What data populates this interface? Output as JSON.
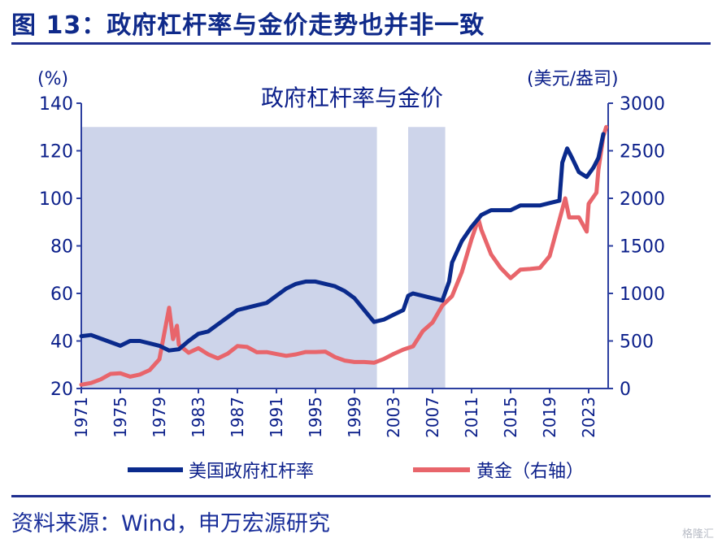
{
  "figure_title": "图 13：政府杠杆率与金价走势也并非一致",
  "source": "资料来源：Wind，申万宏源研究",
  "watermark": "格隆汇",
  "colors": {
    "title": "#0f2a8a",
    "leverage_line": "#0a2a8c",
    "gold_line": "#e8656b",
    "shade": "#cdd4ea",
    "axis": "#2c3fa0"
  },
  "chart_data": {
    "type": "line",
    "title": "政府杠杆率与金价",
    "left_axis": {
      "unit": "(%)",
      "min": 20,
      "max": 140,
      "ticks": [
        20,
        40,
        60,
        80,
        100,
        120,
        140
      ]
    },
    "right_axis": {
      "unit": "(美元/盎司)",
      "min": 0,
      "max": 3000,
      "ticks": [
        0,
        500,
        1000,
        1500,
        2000,
        2500,
        3000
      ]
    },
    "x_axis": {
      "min": 1971,
      "max": 2025,
      "ticks": [
        "1971",
        "1975",
        "1979",
        "1983",
        "1987",
        "1991",
        "1995",
        "1999",
        "2003",
        "2007",
        "2011",
        "2015",
        "2019",
        "2023"
      ]
    },
    "shaded_periods": [
      {
        "start": 1971,
        "end": 2001.3
      },
      {
        "start": 2004.5,
        "end": 2008.3
      }
    ],
    "series": [
      {
        "name": "美国政府杠杆率",
        "axis": "left",
        "points": [
          [
            1971,
            42
          ],
          [
            1972,
            42.5
          ],
          [
            1973,
            41
          ],
          [
            1974,
            39.5
          ],
          [
            1975,
            38
          ],
          [
            1976,
            40
          ],
          [
            1977,
            40
          ],
          [
            1978,
            39
          ],
          [
            1979,
            38
          ],
          [
            1980,
            36
          ],
          [
            1981,
            36.5
          ],
          [
            1982,
            40
          ],
          [
            1983,
            43
          ],
          [
            1984,
            44
          ],
          [
            1985,
            47
          ],
          [
            1986,
            50
          ],
          [
            1987,
            53
          ],
          [
            1988,
            54
          ],
          [
            1989,
            55
          ],
          [
            1990,
            56
          ],
          [
            1991,
            59
          ],
          [
            1992,
            62
          ],
          [
            1993,
            64
          ],
          [
            1994,
            65
          ],
          [
            1995,
            65
          ],
          [
            1996,
            64
          ],
          [
            1997,
            63
          ],
          [
            1998,
            61
          ],
          [
            1999,
            58
          ],
          [
            2000,
            53
          ],
          [
            2001,
            48
          ],
          [
            2002,
            49
          ],
          [
            2003,
            51
          ],
          [
            2004,
            53
          ],
          [
            2004.5,
            59
          ],
          [
            2005,
            60
          ],
          [
            2006,
            59
          ],
          [
            2007,
            58
          ],
          [
            2008,
            57
          ],
          [
            2008.7,
            65
          ],
          [
            2009,
            73
          ],
          [
            2010,
            82
          ],
          [
            2011,
            88
          ],
          [
            2012,
            93
          ],
          [
            2013,
            95
          ],
          [
            2014,
            95
          ],
          [
            2015,
            95
          ],
          [
            2016,
            97
          ],
          [
            2017,
            97
          ],
          [
            2018,
            97
          ],
          [
            2019,
            98
          ],
          [
            2020,
            99
          ],
          [
            2020.3,
            115
          ],
          [
            2020.8,
            121
          ],
          [
            2021.3,
            117
          ],
          [
            2022,
            111
          ],
          [
            2022.8,
            109
          ],
          [
            2023.5,
            113
          ],
          [
            2024,
            117
          ],
          [
            2024.5,
            127
          ]
        ]
      },
      {
        "name": "黄金（右轴）",
        "axis": "right",
        "points": [
          [
            1971,
            40
          ],
          [
            1972,
            58
          ],
          [
            1973,
            97
          ],
          [
            1974,
            154
          ],
          [
            1975,
            160
          ],
          [
            1976,
            125
          ],
          [
            1977,
            147
          ],
          [
            1978,
            193
          ],
          [
            1979,
            307
          ],
          [
            1980,
            850
          ],
          [
            1980.4,
            520
          ],
          [
            1980.8,
            660
          ],
          [
            1981,
            460
          ],
          [
            1982,
            376
          ],
          [
            1983,
            424
          ],
          [
            1984,
            360
          ],
          [
            1985,
            317
          ],
          [
            1986,
            367
          ],
          [
            1987,
            446
          ],
          [
            1988,
            437
          ],
          [
            1989,
            381
          ],
          [
            1990,
            383
          ],
          [
            1991,
            362
          ],
          [
            1992,
            344
          ],
          [
            1993,
            359
          ],
          [
            1994,
            384
          ],
          [
            1995,
            384
          ],
          [
            1996,
            388
          ],
          [
            1997,
            331
          ],
          [
            1998,
            294
          ],
          [
            1999,
            279
          ],
          [
            2000,
            279
          ],
          [
            2001,
            271
          ],
          [
            2002,
            310
          ],
          [
            2003,
            363
          ],
          [
            2004,
            409
          ],
          [
            2005,
            444
          ],
          [
            2006,
            603
          ],
          [
            2007,
            695
          ],
          [
            2008,
            872
          ],
          [
            2009,
            972
          ],
          [
            2010,
            1224
          ],
          [
            2011,
            1571
          ],
          [
            2011.7,
            1780
          ],
          [
            2012,
            1669
          ],
          [
            2013,
            1411
          ],
          [
            2014,
            1266
          ],
          [
            2015,
            1160
          ],
          [
            2016,
            1250
          ],
          [
            2017,
            1257
          ],
          [
            2018,
            1268
          ],
          [
            2019,
            1392
          ],
          [
            2020,
            1770
          ],
          [
            2020.6,
            2000
          ],
          [
            2021,
            1799
          ],
          [
            2022,
            1800
          ],
          [
            2022.8,
            1650
          ],
          [
            2023,
            1943
          ],
          [
            2023.8,
            2060
          ],
          [
            2024,
            2300
          ],
          [
            2024.5,
            2650
          ],
          [
            2024.8,
            2750
          ]
        ]
      }
    ]
  }
}
